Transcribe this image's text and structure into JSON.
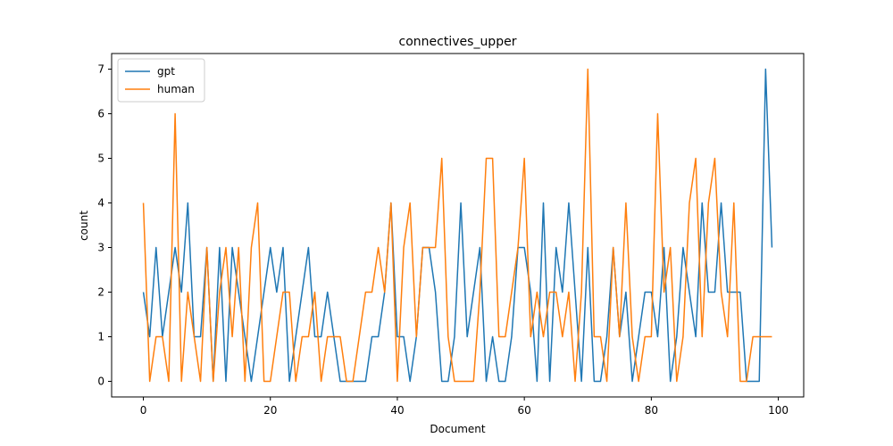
{
  "chart_data": {
    "type": "line",
    "title": "connectives_upper",
    "xlabel": "Document",
    "ylabel": "count",
    "xlim": [
      -5,
      104
    ],
    "ylim": [
      -0.35,
      7.35
    ],
    "xticks": [
      0,
      20,
      40,
      60,
      80,
      100
    ],
    "yticks": [
      0,
      1,
      2,
      3,
      4,
      5,
      6,
      7
    ],
    "grid": false,
    "legend": "upper-left",
    "colors": {
      "gpt": "#1f77b4",
      "human": "#ff7f0e"
    },
    "series": [
      {
        "name": "gpt",
        "values": [
          2,
          1,
          3,
          1,
          2,
          3,
          2,
          4,
          1,
          1,
          3,
          0,
          3,
          0,
          3,
          2,
          1,
          0,
          1,
          2,
          3,
          2,
          3,
          0,
          1,
          2,
          3,
          1,
          1,
          2,
          1,
          0,
          0,
          0,
          0,
          0,
          1,
          1,
          2,
          4,
          1,
          1,
          0,
          1,
          3,
          3,
          2,
          0,
          0,
          1,
          4,
          1,
          2,
          3,
          0,
          1,
          0,
          0,
          1,
          3,
          3,
          2,
          0,
          4,
          0,
          3,
          2,
          4,
          2,
          0,
          3,
          0,
          0,
          1,
          3,
          1,
          2,
          0,
          1,
          2,
          2,
          1,
          3,
          0,
          1,
          3,
          2,
          1,
          4,
          2,
          2,
          4,
          2,
          2,
          2,
          0,
          0,
          0,
          7,
          3
        ]
      },
      {
        "name": "human",
        "values": [
          4,
          0,
          1,
          1,
          0,
          6,
          0,
          2,
          1,
          0,
          3,
          0,
          2,
          3,
          1,
          3,
          0,
          3,
          4,
          0,
          0,
          1,
          2,
          2,
          0,
          1,
          1,
          2,
          0,
          1,
          1,
          1,
          0,
          0,
          1,
          2,
          2,
          3,
          2,
          4,
          0,
          3,
          4,
          1,
          3,
          3,
          3,
          5,
          1,
          0,
          0,
          0,
          0,
          2,
          5,
          5,
          1,
          1,
          2,
          3,
          5,
          1,
          2,
          1,
          2,
          2,
          1,
          2,
          0,
          2,
          7,
          1,
          1,
          0,
          3,
          1,
          4,
          1,
          0,
          1,
          1,
          6,
          2,
          3,
          0,
          1,
          4,
          5,
          1,
          4,
          5,
          2,
          1,
          4,
          0,
          0,
          1,
          1,
          1,
          1
        ]
      }
    ]
  }
}
